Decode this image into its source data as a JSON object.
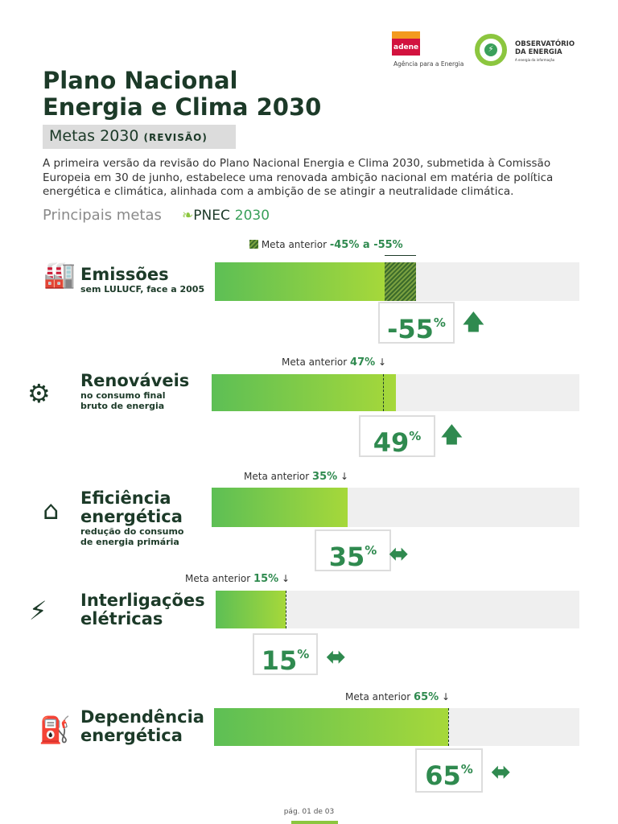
{
  "header": {
    "logo_adene": "adene",
    "adene_tagline": "Agência para a Energia",
    "logo_observatorio": "OBSERVATÓRIO DA ENERGIA",
    "observatorio_tagline": "A energia da informação"
  },
  "title_line1": "Plano Nacional",
  "title_line2": "Energia e Clima 2030",
  "subtitle": "Metas 2030",
  "subtitle_tag": "(REVISÃO)",
  "intro": "A primeira versão da revisão do Plano Nacional Energia e Clima 2030, submetida à Comissão Europeia em 30 de junho, estabelece uma renovada ambição nacional em matéria de política energética e climática, alinhada com a ambição de se atingir a neutralidade climática.",
  "principais": "Principais metas",
  "pnec": "PNEC",
  "pnec_year": "2030",
  "colors": {
    "dark_green": "#1c3a28",
    "accent": "#2f8a4f",
    "bar_start": "#5dbf55",
    "bar_end": "#a6d83a"
  },
  "targets": [
    {
      "name": "Emissões",
      "desc1": "sem LULUCF, face a 2005",
      "desc2": "",
      "meta_label": "Meta anterior",
      "meta_value": "-45% a -55%",
      "value": "-55",
      "unit": "%",
      "trend": "up",
      "icon": "factory-icon"
    },
    {
      "name": "Renováveis",
      "desc1": "no consumo final",
      "desc2": "bruto de energia",
      "meta_label": "Meta anterior",
      "meta_value": "47%",
      "value": "49",
      "unit": "%",
      "trend": "up",
      "icon": "wind-solar-icon"
    },
    {
      "name": "Eficiência",
      "name2": "energética",
      "desc1": "redução do consumo",
      "desc2": "de energia primária",
      "meta_label": "Meta anterior",
      "meta_value": "35%",
      "value": "35",
      "unit": "%",
      "trend": "equal",
      "icon": "energy-label-house-icon"
    },
    {
      "name": "Interligações",
      "name2": "elétricas",
      "meta_label": "Meta anterior",
      "meta_value": "15%",
      "value": "15",
      "unit": "%",
      "trend": "equal",
      "icon": "power-tower-icon"
    },
    {
      "name": "Dependência",
      "name2": "energética",
      "meta_label": "Meta anterior",
      "meta_value": "65%",
      "value": "65",
      "unit": "%",
      "trend": "equal",
      "icon": "oil-pump-icon"
    }
  ],
  "footer": "pág. 01 de 03"
}
